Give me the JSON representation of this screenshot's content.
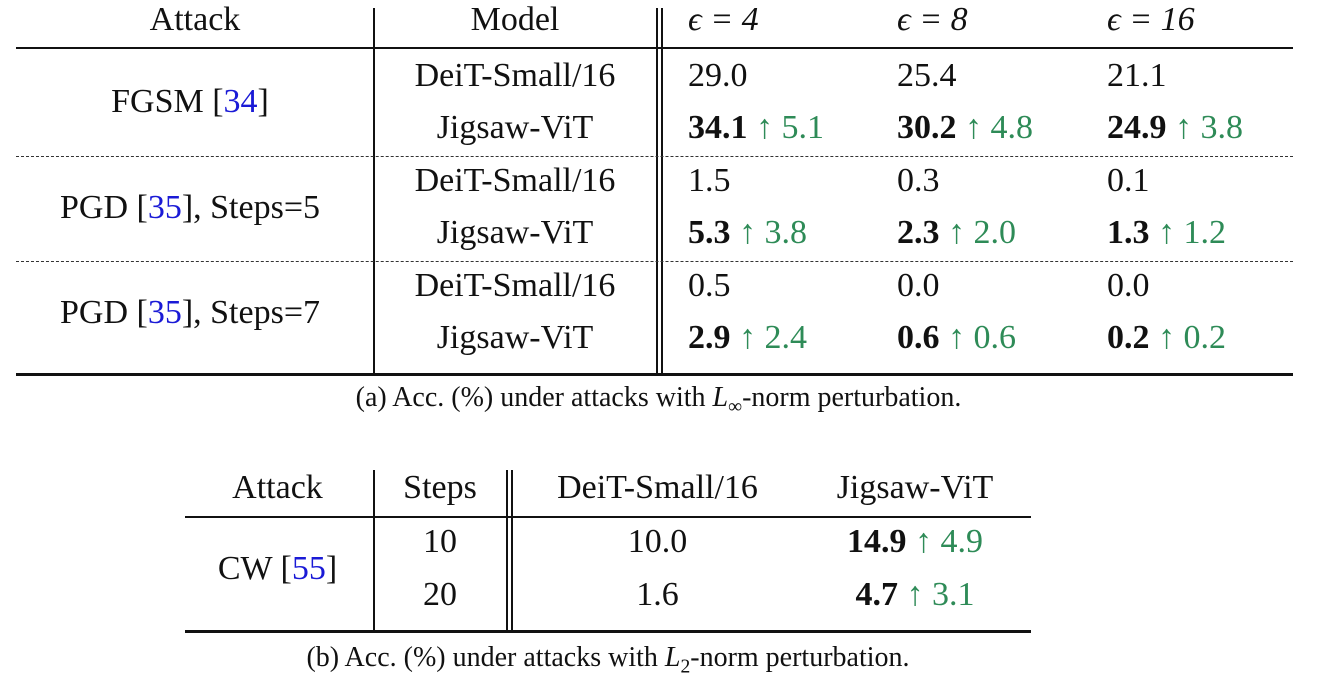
{
  "table_a": {
    "headers": {
      "attack": "Attack",
      "model": "Model",
      "eps": [
        "ϵ = 4",
        "ϵ = 8",
        "ϵ = 16"
      ]
    },
    "groups": [
      {
        "attack": "FGSM [",
        "ref": "34",
        "attack_suffix": "]",
        "rows": [
          {
            "model": "DeiT-Small/16",
            "values": [
              "29.0",
              "25.4",
              "21.1"
            ]
          },
          {
            "model": "Jigsaw-ViT",
            "values": [
              "34.1",
              "30.2",
              "24.9"
            ],
            "gains": [
              "↑ 5.1",
              "↑ 4.8",
              "↑ 3.8"
            ]
          }
        ]
      },
      {
        "attack": "PGD [",
        "ref": "35",
        "attack_suffix": "], Steps=5",
        "rows": [
          {
            "model": "DeiT-Small/16",
            "values": [
              "1.5",
              "0.3",
              "0.1"
            ]
          },
          {
            "model": "Jigsaw-ViT",
            "values": [
              "5.3",
              "2.3",
              "1.3"
            ],
            "gains": [
              "↑ 3.8",
              "↑ 2.0",
              "↑ 1.2"
            ]
          }
        ]
      },
      {
        "attack": "PGD [",
        "ref": "35",
        "attack_suffix": "], Steps=7",
        "rows": [
          {
            "model": "DeiT-Small/16",
            "values": [
              "0.5",
              "0.0",
              "0.0"
            ]
          },
          {
            "model": "Jigsaw-ViT",
            "values": [
              "2.9",
              "0.6",
              "0.2"
            ],
            "gains": [
              "↑ 2.4",
              "↑ 0.6",
              "↑ 0.2"
            ]
          }
        ]
      }
    ],
    "caption": {
      "pre": "(a) Acc. (%) under attacks with ",
      "sym": "L",
      "sub": "∞",
      "post": "-norm perturbation."
    }
  },
  "table_b": {
    "headers": {
      "attack": "Attack",
      "steps": "Steps",
      "deit": "DeiT-Small/16",
      "jigsaw": "Jigsaw-ViT"
    },
    "attack": "CW [",
    "ref": "55",
    "attack_suffix": "]",
    "rows": [
      {
        "steps": "10",
        "deit": "10.0",
        "jigsaw": "14.9",
        "gain": "↑ 4.9"
      },
      {
        "steps": "20",
        "deit": "1.6",
        "jigsaw": "4.7",
        "gain": "↑ 3.1"
      }
    ],
    "caption": {
      "pre": "(b) Acc. (%) under attacks with ",
      "sym": "L",
      "sub": "2",
      "post": "-norm perturbation."
    }
  },
  "colors": {
    "gain": "#2e8b57",
    "ref": "#1a1ad6",
    "text": "#111111"
  }
}
